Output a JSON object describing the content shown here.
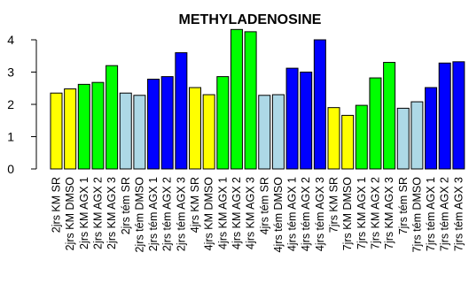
{
  "chart_data": {
    "type": "bar",
    "title": "METHYLADENOSINE",
    "xlabel": "",
    "ylabel": "",
    "ylim": [
      0,
      4.3
    ],
    "yticks": [
      0,
      1,
      2,
      3,
      4
    ],
    "grid": false,
    "legend": "none",
    "categories": [
      "2jrs KM SR",
      "2jrs KM DMSO",
      "2jrs KM AGX 1",
      "2jrs KM AGX 2",
      "2jrs KM AGX 3",
      "2jrs tém SR",
      "2jrs tém DMSO",
      "2jrs tém AGX 1",
      "2jrs tém AGX 2",
      "2jrs tém AGX 3",
      "4jrs KM SR",
      "4jrs KM DMSO",
      "4jrs KM AGX 1",
      "4jrs KM AGX 2",
      "4jrs KM AGX 3",
      "4jrs tém SR",
      "4jrs tém DMSO",
      "4jrs tém AGX 1",
      "4jrs tém AGX 2",
      "4jrs tém AGX 3",
      "7jrs KM SR",
      "7jrs KM DMSO",
      "7jrs KM AGX 1",
      "7jrs KM AGX 2",
      "7jrs KM AGX 3",
      "7jrs tém SR",
      "7jrs tém DMSO",
      "7jrs tém AGX 1",
      "7jrs tém AGX 2",
      "7jrs tém AGX 3"
    ],
    "values": [
      2.35,
      2.48,
      2.62,
      2.68,
      3.2,
      2.35,
      2.28,
      2.78,
      2.86,
      3.6,
      2.52,
      2.3,
      2.86,
      4.32,
      4.25,
      2.28,
      2.3,
      3.12,
      3.0,
      4.0,
      1.9,
      1.66,
      1.97,
      2.82,
      3.3,
      1.88,
      2.08,
      2.52,
      3.28,
      3.32
    ],
    "bar_colors": [
      "#ffff00",
      "#ffff00",
      "#00ff00",
      "#00ff00",
      "#00ff00",
      "#add8e6",
      "#add8e6",
      "#0000ff",
      "#0000ff",
      "#0000ff",
      "#ffff00",
      "#ffff00",
      "#00ff00",
      "#00ff00",
      "#00ff00",
      "#add8e6",
      "#add8e6",
      "#0000ff",
      "#0000ff",
      "#0000ff",
      "#ffff00",
      "#ffff00",
      "#00ff00",
      "#00ff00",
      "#00ff00",
      "#add8e6",
      "#add8e6",
      "#0000ff",
      "#0000ff",
      "#0000ff"
    ]
  }
}
